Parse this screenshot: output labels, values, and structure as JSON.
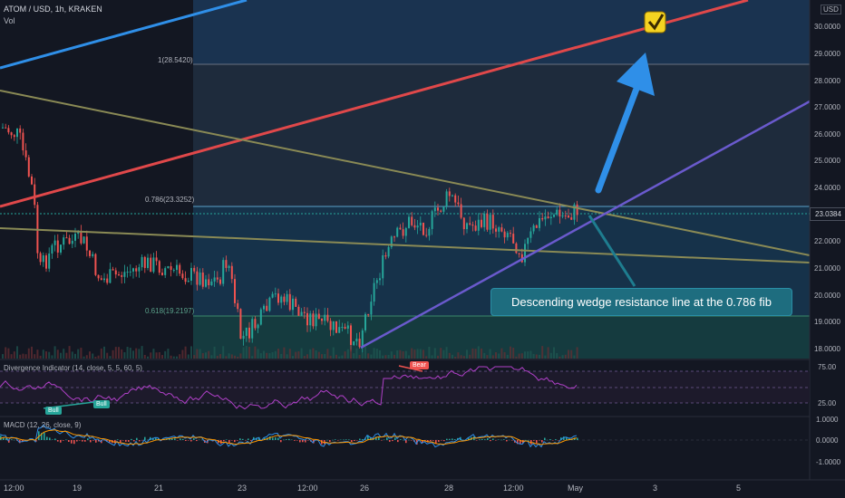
{
  "header": {
    "symbol": "ATOM / USD, 1h, KRAKEN",
    "volume_label": "Vol",
    "currency": "USD"
  },
  "fib": {
    "level_1": "1(28.5420)",
    "level_786": "0.786(23.3252)",
    "level_618": "0.618(19.2197)"
  },
  "price_axis": [
    "30.0000",
    "29.0000",
    "28.0000",
    "27.0000",
    "26.0000",
    "25.0000",
    "24.0000",
    "22.0000",
    "21.0000",
    "20.0000",
    "19.0000",
    "18.0000"
  ],
  "current_price": "23.0384",
  "time_axis": [
    "12:00",
    "19",
    "21",
    "23",
    "12:00",
    "26",
    "28",
    "12:00",
    "May",
    "3",
    "5"
  ],
  "annotation": "Descending wedge resistance line at the 0.786 fib",
  "rsi": {
    "label": "Divergence Indicator (14, close, 5, 5, 60, 5)",
    "axis": [
      "75.00",
      "25.00"
    ],
    "bear_badge": "Bear",
    "bull_badge_1": "Bull",
    "bull_badge_2": "Bull"
  },
  "macd": {
    "label": "MACD (12, 26, close, 9)",
    "axis": [
      "1.0000",
      "0.0000",
      "-1.0000"
    ]
  },
  "colors": {
    "background": "#131722",
    "up_candle": "#26a69a",
    "down_candle": "#ef5350",
    "red_channel": "#e0484a",
    "blue_channel": "#2f8fe8",
    "purple_support": "#6a5acd",
    "olive_trend": "#8a8a55",
    "arrow": "#2f8fe8",
    "callout": "#1e6d7f",
    "check": "#f5d321"
  },
  "icons": [
    "checkmark-box-icon",
    "arrow-up-icon"
  ]
}
